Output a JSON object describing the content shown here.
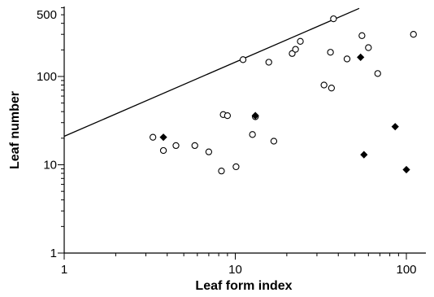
{
  "chart_data": {
    "type": "scatter",
    "xlabel": "Leaf form index",
    "ylabel": "Leaf number",
    "x_scale": "log",
    "y_scale": "log",
    "xlim": [
      1,
      130
    ],
    "ylim": [
      1,
      620
    ],
    "x_ticks": [
      {
        "value": 1,
        "label": "1"
      },
      {
        "value": 10,
        "label": "10"
      },
      {
        "value": 100,
        "label": "100"
      }
    ],
    "y_ticks": [
      {
        "value": 1,
        "label": "1"
      },
      {
        "value": 10,
        "label": "10"
      },
      {
        "value": 100,
        "label": "100"
      },
      {
        "value": 500,
        "label": "500"
      }
    ],
    "grid": false,
    "series": [
      {
        "marker": "open-circle",
        "points": [
          {
            "x": 3.3,
            "y": 20.5
          },
          {
            "x": 3.8,
            "y": 14.5
          },
          {
            "x": 4.5,
            "y": 16.5
          },
          {
            "x": 5.8,
            "y": 16.5
          },
          {
            "x": 7.0,
            "y": 14.0
          },
          {
            "x": 8.3,
            "y": 8.5
          },
          {
            "x": 8.5,
            "y": 37
          },
          {
            "x": 9.0,
            "y": 36
          },
          {
            "x": 10.1,
            "y": 9.5
          },
          {
            "x": 11.1,
            "y": 155
          },
          {
            "x": 12.6,
            "y": 22
          },
          {
            "x": 13.1,
            "y": 35
          },
          {
            "x": 15.7,
            "y": 145
          },
          {
            "x": 16.8,
            "y": 18.5
          },
          {
            "x": 21.5,
            "y": 182
          },
          {
            "x": 22.5,
            "y": 203
          },
          {
            "x": 24.0,
            "y": 250
          },
          {
            "x": 33.0,
            "y": 80
          },
          {
            "x": 36.0,
            "y": 188
          },
          {
            "x": 36.5,
            "y": 74
          },
          {
            "x": 37.5,
            "y": 450
          },
          {
            "x": 45.0,
            "y": 158
          },
          {
            "x": 55.0,
            "y": 290
          },
          {
            "x": 60.0,
            "y": 212
          },
          {
            "x": 68.0,
            "y": 108
          },
          {
            "x": 110.0,
            "y": 300
          }
        ]
      },
      {
        "marker": "filled-diamond",
        "points": [
          {
            "x": 3.8,
            "y": 20.5
          },
          {
            "x": 13.1,
            "y": 36
          },
          {
            "x": 54.0,
            "y": 165
          },
          {
            "x": 56.5,
            "y": 13
          },
          {
            "x": 86.0,
            "y": 27
          },
          {
            "x": 100.0,
            "y": 8.8
          }
        ]
      }
    ],
    "line": {
      "from": {
        "x": 1,
        "y": 21
      },
      "to": {
        "x": 53,
        "y": 590
      }
    }
  }
}
